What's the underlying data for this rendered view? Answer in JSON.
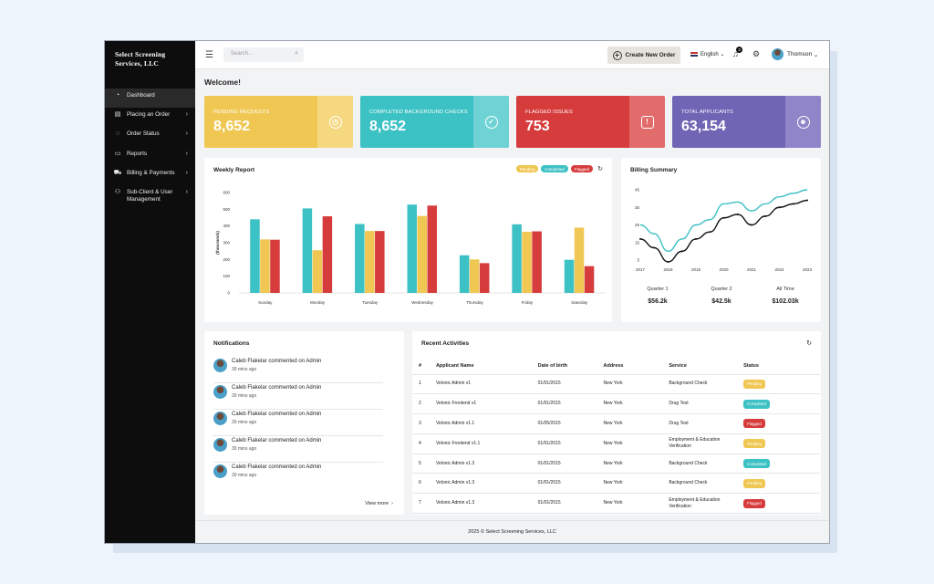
{
  "brand": {
    "line1": "Select Screening",
    "line2": "Services, LLC"
  },
  "sidebar": {
    "items": [
      {
        "label": "Dashboard",
        "icon": "dashboard-icon",
        "glyph": "◔",
        "chevron": ""
      },
      {
        "label": "Placing an Order",
        "icon": "order-icon",
        "glyph": "▤",
        "chevron": "›"
      },
      {
        "label": "Order Status",
        "icon": "status-icon",
        "glyph": "◌",
        "chevron": "›"
      },
      {
        "label": "Reports",
        "icon": "reports-icon",
        "glyph": "▭",
        "chevron": "›"
      },
      {
        "label": "Billing & Payments",
        "icon": "billing-icon",
        "glyph": "⛟",
        "chevron": "›"
      },
      {
        "label": "Sub-Client & User Management",
        "icon": "users-icon",
        "glyph": "⚇",
        "chevron": "›"
      }
    ]
  },
  "topbar": {
    "search_placeholder": "Search...",
    "create_label": "Create New Order",
    "language": "English",
    "notifications_count": "3",
    "username": "Thomson"
  },
  "welcome": "Welcome!",
  "stats": [
    {
      "label": "Pending Requests",
      "value": "8,652",
      "color": "#efc752",
      "side": "#f5d87f",
      "icon": "clock-icon",
      "glyph": "◷"
    },
    {
      "label": "Completed Background Checks",
      "value": "8,652",
      "color": "#3cc1c4",
      "side": "#6fd3d5",
      "icon": "check-icon",
      "glyph": "✓"
    },
    {
      "label": "Flagged Issues",
      "value": "753",
      "color": "#d63c3c",
      "side": "#e26c6c",
      "icon": "alert-icon",
      "glyph": "!"
    },
    {
      "label": "Total Applicants",
      "value": "63,154",
      "color": "#7064b5",
      "side": "#8f85c8",
      "icon": "applicants-icon",
      "glyph": "☻"
    }
  ],
  "weekly": {
    "title": "Weekly Report",
    "legend": [
      {
        "label": "Pending",
        "color": "#efc752"
      },
      {
        "label": "Completed",
        "color": "#3cc1c4"
      },
      {
        "label": "Flagged",
        "color": "#d63c3c"
      }
    ]
  },
  "billing": {
    "title": "Billing Summary",
    "summary": [
      {
        "label": "Quarter 1",
        "value": "$56.2k"
      },
      {
        "label": "Quarter 2",
        "value": "$42.5k"
      },
      {
        "label": "All Time",
        "value": "$102.03k"
      }
    ]
  },
  "chart_data": [
    {
      "type": "bar",
      "title": "Weekly Report",
      "xlabel": "",
      "ylabel": "(thousands)",
      "ylim": [
        0,
        600
      ],
      "yticks": [
        0,
        100,
        200,
        300,
        400,
        500,
        600
      ],
      "categories": [
        "Sunday",
        "Monday",
        "Tuesday",
        "Wednesday",
        "Thursday",
        "Friday",
        "Saturday"
      ],
      "series": [
        {
          "name": "Completed",
          "color": "#3cc1c4",
          "values": [
            440,
            505,
            412,
            528,
            225,
            410,
            198
          ]
        },
        {
          "name": "Pending",
          "color": "#efc752",
          "values": [
            320,
            255,
            370,
            460,
            200,
            365,
            390
          ]
        },
        {
          "name": "Flagged",
          "color": "#d63c3c",
          "values": [
            318,
            458,
            370,
            522,
            178,
            368,
            160
          ]
        }
      ],
      "legend": "top-right",
      "grid": false
    },
    {
      "type": "line",
      "title": "Billing Summary",
      "x": [
        2017,
        2018,
        2019,
        2020,
        2021,
        2022,
        2023
      ],
      "xlim": [
        2017,
        2023
      ],
      "ylim": [
        5,
        45
      ],
      "yticks": [
        5,
        15,
        25,
        35,
        45
      ],
      "series": [
        {
          "color": "#3cc1c4",
          "points": [
            [
              2017,
              25
            ],
            [
              2017.5,
              20
            ],
            [
              2018,
              10
            ],
            [
              2018.5,
              17
            ],
            [
              2019,
              25
            ],
            [
              2019.5,
              28
            ],
            [
              2020,
              37
            ],
            [
              2020.5,
              38
            ],
            [
              2021,
              33
            ],
            [
              2021.5,
              37
            ],
            [
              2022,
              41
            ],
            [
              2022.5,
              43
            ],
            [
              2023,
              45
            ]
          ]
        },
        {
          "color": "#111111",
          "points": [
            [
              2017,
              17
            ],
            [
              2017.5,
              12
            ],
            [
              2018,
              4
            ],
            [
              2018.5,
              10
            ],
            [
              2019,
              17
            ],
            [
              2019.5,
              21
            ],
            [
              2020,
              29
            ],
            [
              2020.5,
              31
            ],
            [
              2021,
              25
            ],
            [
              2021.5,
              30
            ],
            [
              2022,
              35
            ],
            [
              2022.5,
              37
            ],
            [
              2023,
              39
            ]
          ]
        }
      ],
      "grid": false
    }
  ],
  "notifications": {
    "title": "Notifications",
    "items": [
      {
        "text": "Caleb Flakelar commented on Admin",
        "ago": "30 mins ago"
      },
      {
        "text": "Caleb Flakelar commented on Admin",
        "ago": "30 mins ago"
      },
      {
        "text": "Caleb Flakelar commented on Admin",
        "ago": "30 mins ago"
      },
      {
        "text": "Caleb Flakelar commented on Admin",
        "ago": "30 mins ago"
      },
      {
        "text": "Caleb Flakelar commented on Admin",
        "ago": "30 mins ago"
      }
    ],
    "view_more": "View more"
  },
  "activities": {
    "title": "Recent Activities",
    "headers": [
      "#",
      "Applicant Name",
      "Date of birth",
      "Address",
      "Service",
      "Status"
    ],
    "rows": [
      {
        "n": "1",
        "name": "Velonic Admin v1",
        "dob": "01/01/2015",
        "addr": "New York",
        "service": "Background Check",
        "status": "Pending"
      },
      {
        "n": "2",
        "name": "Velonic Frontend v1",
        "dob": "01/01/2015",
        "addr": "New York",
        "service": "Drug Test",
        "status": "Completed"
      },
      {
        "n": "3",
        "name": "Velonic Admin v1.1",
        "dob": "01/05/2015",
        "addr": "New York",
        "service": "Drug Test",
        "status": "Flagged"
      },
      {
        "n": "4",
        "name": "Velonic Frontend v1.1",
        "dob": "01/01/2015",
        "addr": "New York",
        "service": "Employment & Education Verification",
        "status": "Pending"
      },
      {
        "n": "5",
        "name": "Velonic Admin v1.3",
        "dob": "01/01/2015",
        "addr": "New York",
        "service": "Background Check",
        "status": "Completed"
      },
      {
        "n": "6",
        "name": "Velonic Admin v1.3",
        "dob": "01/01/2015",
        "addr": "New York",
        "service": "Background Check",
        "status": "Pending"
      },
      {
        "n": "7",
        "name": "Velonic Admin v1.3",
        "dob": "01/01/2015",
        "addr": "New York",
        "service": "Employment & Education Verification",
        "status": "Flagged"
      }
    ],
    "status_colors": {
      "Pending": "#efc752",
      "Completed": "#3cc1c4",
      "Flagged": "#d63c3c"
    }
  },
  "footer": "2025 © Select Screening Services, LLC"
}
